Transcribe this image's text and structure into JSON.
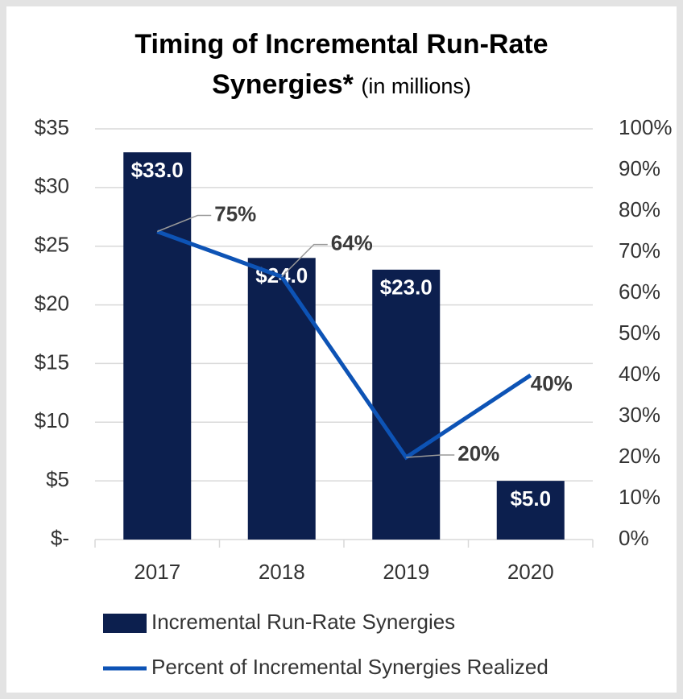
{
  "chart_data": {
    "type": "bar_line",
    "title": "Timing of Incremental Run-Rate Synergies*",
    "subtitle": "(in millions)",
    "categories": [
      "2017",
      "2018",
      "2019",
      "2020"
    ],
    "series": [
      {
        "name": "Incremental Run-Rate Synergies",
        "type": "bar",
        "color": "#0c1f4e",
        "values": [
          33,
          24,
          23,
          5
        ],
        "value_labels": [
          "$33.0",
          "$24.0",
          "$23.0",
          "$5.0"
        ]
      },
      {
        "name": "Percent of Incremental Synergies Realized",
        "type": "line",
        "axis": "y2",
        "color": "#0d53b5",
        "values": [
          75,
          64,
          20,
          40
        ],
        "value_labels": [
          "75%",
          "64%",
          "20%",
          "40%"
        ]
      }
    ],
    "ylim": [
      0,
      35
    ],
    "yticks": [
      {
        "value": 0,
        "label": "$-"
      },
      {
        "value": 5,
        "label": "$5"
      },
      {
        "value": 10,
        "label": "$10"
      },
      {
        "value": 15,
        "label": "$15"
      },
      {
        "value": 20,
        "label": "$20"
      },
      {
        "value": 25,
        "label": "$25"
      },
      {
        "value": 30,
        "label": "$30"
      },
      {
        "value": 35,
        "label": "$35"
      }
    ],
    "y2lim": [
      0,
      100
    ],
    "y2ticks": [
      {
        "value": 0,
        "label": "0%"
      },
      {
        "value": 10,
        "label": "10%"
      },
      {
        "value": 20,
        "label": "20%"
      },
      {
        "value": 30,
        "label": "30%"
      },
      {
        "value": 40,
        "label": "40%"
      },
      {
        "value": 50,
        "label": "50%"
      },
      {
        "value": 60,
        "label": "60%"
      },
      {
        "value": 70,
        "label": "70%"
      },
      {
        "value": 80,
        "label": "80%"
      },
      {
        "value": 90,
        "label": "90%"
      },
      {
        "value": 100,
        "label": "100%"
      }
    ],
    "grid": true,
    "legend": "bottom"
  }
}
